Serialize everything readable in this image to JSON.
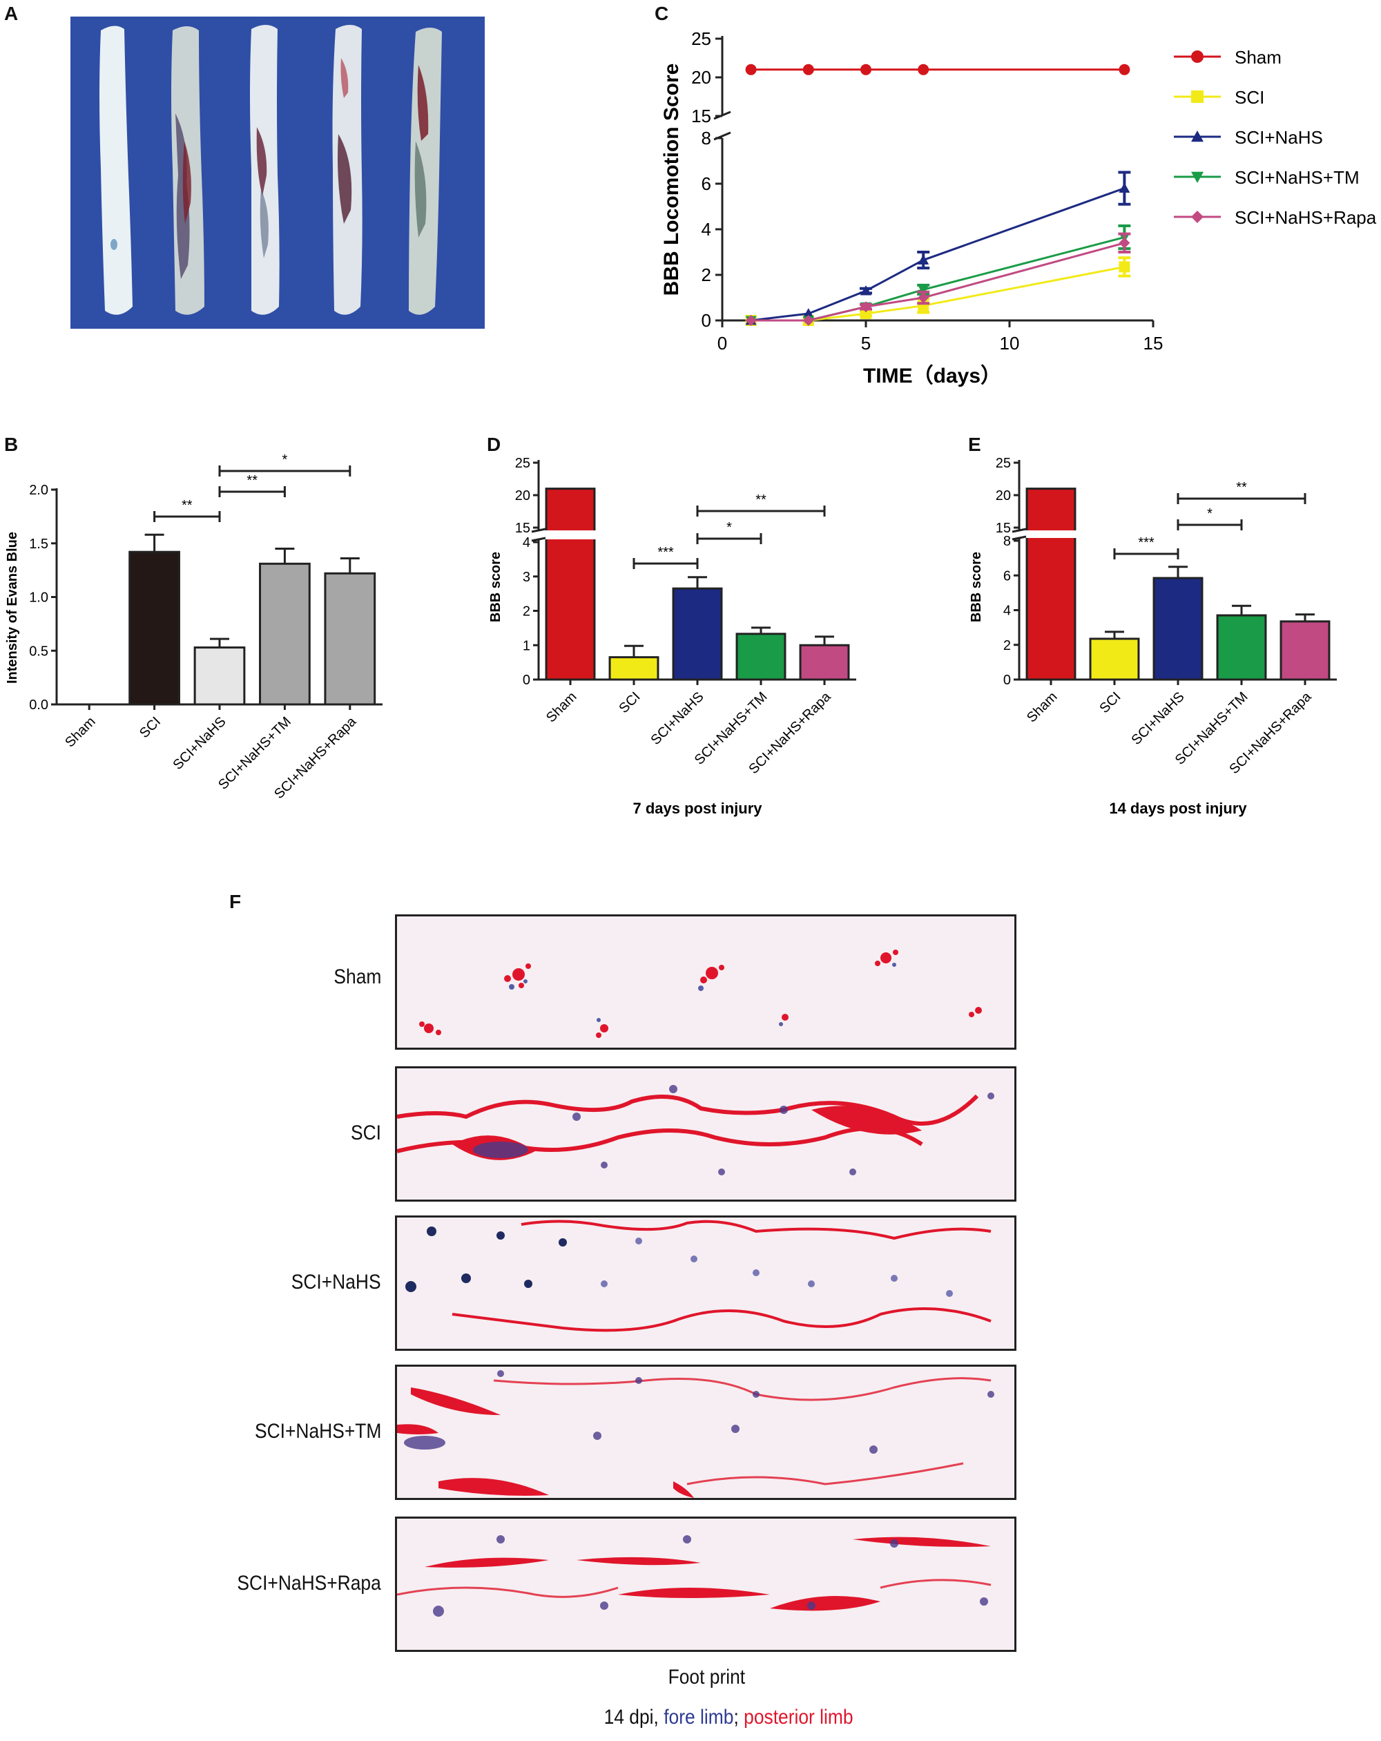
{
  "panels": {
    "A": "A",
    "B": "B",
    "C": "C",
    "D": "D",
    "E": "E",
    "F": "F"
  },
  "colors": {
    "sham": "#d3161c",
    "sci": "#f2ea17",
    "nahs": "#1c2a82",
    "nahs_tm": "#1a9b47",
    "nahs_rapa": "#c14a82",
    "b_sci": "#231815",
    "b_nahs": "#e6e6e6",
    "b_gray": "#a6a6a6",
    "photo_bg": "#2f4ea6"
  },
  "chart_data": [
    {
      "panel": "C",
      "type": "line",
      "xlabel": "TIME（days）",
      "ylabel": "BBB Locomotion Score",
      "xlim": [
        0,
        15
      ],
      "xticks": [
        "0",
        "5",
        "10",
        "15"
      ],
      "ylim_lower": [
        0,
        8
      ],
      "ylim_upper": [
        15,
        25
      ],
      "yticks": [
        "0",
        "2",
        "4",
        "6",
        "8",
        "15",
        "20",
        "25"
      ],
      "x": [
        1,
        3,
        5,
        7,
        14
      ],
      "legend_position": "right",
      "series": [
        {
          "name": "Sham",
          "key": "sham",
          "marker": "circle",
          "values": [
            21,
            21,
            21,
            21,
            21
          ],
          "errors": [
            0,
            0,
            0,
            0,
            0
          ]
        },
        {
          "name": "SCI",
          "key": "sci",
          "marker": "square",
          "values": [
            0,
            0,
            0.3,
            0.65,
            2.35
          ],
          "errors": [
            0,
            0,
            0.1,
            0.3,
            0.4
          ]
        },
        {
          "name": "SCI+NaHS",
          "key": "nahs",
          "marker": "triangle-up",
          "values": [
            0,
            0.3,
            1.3,
            2.65,
            5.8
          ],
          "errors": [
            0,
            0,
            0.1,
            0.35,
            0.7
          ]
        },
        {
          "name": "SCI+NaHS+TM",
          "key": "nahs_tm",
          "marker": "triangle-down",
          "values": [
            0,
            0,
            0.6,
            1.35,
            3.65
          ],
          "errors": [
            0,
            0,
            0.1,
            0.2,
            0.5
          ]
        },
        {
          "name": "SCI+NaHS+Rapa",
          "key": "nahs_rapa",
          "marker": "diamond",
          "values": [
            0,
            0,
            0.6,
            1.0,
            3.4
          ],
          "errors": [
            0,
            0,
            0.1,
            0.25,
            0.4
          ]
        }
      ]
    },
    {
      "panel": "B",
      "type": "bar",
      "ylabel": "Intensity of Evans Blue",
      "ylim": [
        0,
        2.0
      ],
      "yticks": [
        "0.0",
        "0.5",
        "1.0",
        "1.5",
        "2.0"
      ],
      "categories": [
        "Sham",
        "SCI",
        "SCI+NaHS",
        "SCI+NaHS+TM",
        "SCI+NaHS+Rapa"
      ],
      "values": [
        0,
        1.42,
        0.53,
        1.31,
        1.22
      ],
      "errors": [
        0,
        0.16,
        0.08,
        0.14,
        0.14
      ],
      "bar_colors": [
        "b_sci",
        "b_sci",
        "b_nahs",
        "b_gray",
        "b_gray"
      ],
      "significance": [
        {
          "from": 1,
          "to": 2,
          "label": "**",
          "level": 0
        },
        {
          "from": 2,
          "to": 3,
          "label": "**",
          "level": 1
        },
        {
          "from": 2,
          "to": 4,
          "label": "*",
          "level": 2
        }
      ]
    },
    {
      "panel": "D",
      "type": "bar",
      "ylabel": "BBB score",
      "xlabel": "7 days post injury",
      "ylim_lower": [
        0,
        4
      ],
      "ylim_upper": [
        15,
        25
      ],
      "yticks_lower": [
        "0",
        "1",
        "2",
        "3",
        "4"
      ],
      "yticks_upper": [
        "15",
        "20",
        "25"
      ],
      "categories": [
        "Sham",
        "SCI",
        "SCI+NaHS",
        "SCI+NaHS+TM",
        "SCI+NaHS+Rapa"
      ],
      "values": [
        21,
        0.65,
        2.65,
        1.33,
        1.0
      ],
      "errors": [
        0,
        0.33,
        0.33,
        0.18,
        0.25
      ],
      "bar_colors": [
        "sham",
        "sci",
        "nahs",
        "nahs_tm",
        "nahs_rapa"
      ],
      "significance": [
        {
          "from": 1,
          "to": 2,
          "label": "***",
          "level": 0
        },
        {
          "from": 2,
          "to": 3,
          "label": "*",
          "level": 1
        },
        {
          "from": 2,
          "to": 4,
          "label": "**",
          "level": 2
        }
      ]
    },
    {
      "panel": "E",
      "type": "bar",
      "ylabel": "BBB score",
      "xlabel": "14 days post injury",
      "ylim_lower": [
        0,
        8
      ],
      "ylim_upper": [
        15,
        25
      ],
      "yticks_lower": [
        "0",
        "2",
        "4",
        "6",
        "8"
      ],
      "yticks_upper": [
        "15",
        "20",
        "25"
      ],
      "categories": [
        "Sham",
        "SCI",
        "SCI+NaHS",
        "SCI+NaHS+TM",
        "SCI+NaHS+Rapa"
      ],
      "values": [
        21,
        2.35,
        5.85,
        3.7,
        3.35
      ],
      "errors": [
        0,
        0.4,
        0.65,
        0.55,
        0.4
      ],
      "bar_colors": [
        "sham",
        "sci",
        "nahs",
        "nahs_tm",
        "nahs_rapa"
      ],
      "significance": [
        {
          "from": 1,
          "to": 2,
          "label": "***",
          "level": 0
        },
        {
          "from": 2,
          "to": 3,
          "label": "*",
          "level": 1
        },
        {
          "from": 2,
          "to": 4,
          "label": "**",
          "level": 2
        }
      ]
    }
  ],
  "footprint": {
    "rows": [
      "Sham",
      "SCI",
      "SCI+NaHS",
      "SCI+NaHS+TM",
      "SCI+NaHS+Rapa"
    ],
    "caption_title": "Foot print",
    "caption_prefix": "14 dpi, ",
    "fore_limb": "fore limb",
    "separator": "; ",
    "posterior_limb": "posterior limb",
    "fore_color": "#2d3a93",
    "posterior_color": "#e0152b"
  }
}
